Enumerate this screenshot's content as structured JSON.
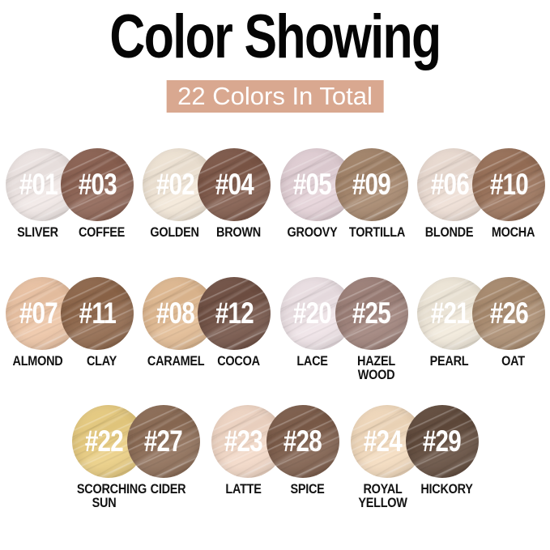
{
  "title": "Color Showing",
  "banner": {
    "text": "22 Colors In Total",
    "bg_color": "#d9a890",
    "text_color": "#ffffff"
  },
  "rows": [
    [
      {
        "light": {
          "num": "#01",
          "name": "SLIVER",
          "color": "#f2e9e7"
        },
        "dark": {
          "num": "#03",
          "name": "COFFEE",
          "color": "#8c6151"
        }
      },
      {
        "light": {
          "num": "#02",
          "name": "GOLDEN",
          "color": "#f4e8d8"
        },
        "dark": {
          "num": "#04",
          "name": "BROWN",
          "color": "#7e5747"
        }
      },
      {
        "light": {
          "num": "#05",
          "name": "GROOVY",
          "color": "#e5d2d8"
        },
        "dark": {
          "num": "#09",
          "name": "TORTILLA",
          "color": "#a48469"
        }
      },
      {
        "light": {
          "num": "#06",
          "name": "BLONDE",
          "color": "#efdfd5"
        },
        "dark": {
          "num": "#10",
          "name": "MOCHA",
          "color": "#997057"
        }
      }
    ],
    [
      {
        "light": {
          "num": "#07",
          "name": "ALMOND",
          "color": "#eec5a5"
        },
        "dark": {
          "num": "#11",
          "name": "CLAY",
          "color": "#8f6649"
        }
      },
      {
        "light": {
          "num": "#08",
          "name": "CARAMEL",
          "color": "#e3bb92"
        },
        "dark": {
          "num": "#12",
          "name": "COCOA",
          "color": "#715043"
        }
      },
      {
        "light": {
          "num": "#20",
          "name": "LACE",
          "color": "#f0e4e8"
        },
        "dark": {
          "num": "#25",
          "name": "HAZEL\nWOOD",
          "color": "#9e8078"
        }
      },
      {
        "light": {
          "num": "#21",
          "name": "PEARL",
          "color": "#f3ebdc"
        },
        "dark": {
          "num": "#26",
          "name": "OAT",
          "color": "#aa8b6e"
        }
      }
    ],
    [
      {
        "light": {
          "num": "#22",
          "name": "SCORCHING\nSUN",
          "color": "#ebce81"
        },
        "dark": {
          "num": "#27",
          "name": "CIDER",
          "color": "#8c6b54"
        }
      },
      {
        "light": {
          "num": "#23",
          "name": "LATTE",
          "color": "#f4d9c7"
        },
        "dark": {
          "num": "#28",
          "name": "SPICE",
          "color": "#7d5c49"
        }
      },
      {
        "light": {
          "num": "#24",
          "name": "ROYAL\nYELLOW",
          "color": "#f5dcbe"
        },
        "dark": {
          "num": "#29",
          "name": "HICKORY",
          "color": "#614a3b"
        }
      }
    ]
  ]
}
